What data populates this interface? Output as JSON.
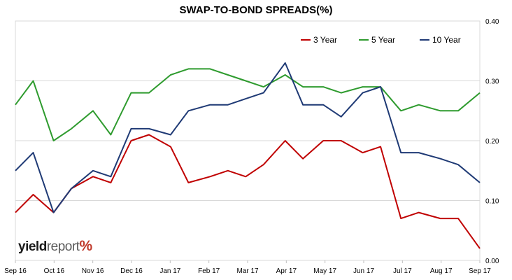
{
  "chart_data": {
    "type": "line",
    "title": "SWAP-TO-BOND SPREADS(%)",
    "xlabel": "",
    "ylabel": "",
    "x_ticks": [
      "Sep 16",
      "Oct 16",
      "Nov 16",
      "Dec 16",
      "Jan 17",
      "Feb 17",
      "Mar 17",
      "Apr 17",
      "May 17",
      "Jun 17",
      "Jul 17",
      "Aug 17",
      "Sep 17"
    ],
    "y_ticks": [
      "0.00",
      "0.10",
      "0.20",
      "0.30",
      "0.40"
    ],
    "ylim": [
      0,
      0.4
    ],
    "y_axis_side": "right",
    "grid": "horizontal",
    "legend": "top-right",
    "x_dates": [
      "2016-09-01",
      "2016-09-15",
      "2016-10-01",
      "2016-10-15",
      "2016-11-01",
      "2016-11-15",
      "2016-12-01",
      "2016-12-15",
      "2017-01-01",
      "2017-01-15",
      "2017-02-01",
      "2017-02-15",
      "2017-03-01",
      "2017-03-15",
      "2017-04-01",
      "2017-04-15",
      "2017-05-01",
      "2017-05-15",
      "2017-06-01",
      "2017-06-15",
      "2017-07-01",
      "2017-07-15",
      "2017-08-01",
      "2017-08-15",
      "2017-09-01"
    ],
    "series": [
      {
        "name": "3 Year",
        "color": "#c00000",
        "values": [
          0.08,
          0.11,
          0.08,
          0.12,
          0.14,
          0.13,
          0.2,
          0.21,
          0.19,
          0.13,
          0.14,
          0.15,
          0.14,
          0.16,
          0.2,
          0.17,
          0.2,
          0.2,
          0.18,
          0.19,
          0.07,
          0.08,
          0.07,
          0.07,
          0.02
        ]
      },
      {
        "name": "5 Year",
        "color": "#2e9b2e",
        "values": [
          0.26,
          0.3,
          0.2,
          0.22,
          0.25,
          0.21,
          0.28,
          0.28,
          0.31,
          0.32,
          0.32,
          0.31,
          0.3,
          0.29,
          0.31,
          0.29,
          0.29,
          0.28,
          0.29,
          0.29,
          0.25,
          0.26,
          0.25,
          0.25,
          0.28
        ]
      },
      {
        "name": "10 Year",
        "color": "#1f3a75",
        "values": [
          0.15,
          0.18,
          0.08,
          0.12,
          0.15,
          0.14,
          0.22,
          0.22,
          0.21,
          0.25,
          0.26,
          0.26,
          0.27,
          0.28,
          0.33,
          0.26,
          0.26,
          0.24,
          0.28,
          0.29,
          0.18,
          0.18,
          0.17,
          0.16,
          0.13
        ]
      }
    ]
  },
  "logo": {
    "part1": "yield",
    "part2": "report",
    "part3": "%"
  }
}
